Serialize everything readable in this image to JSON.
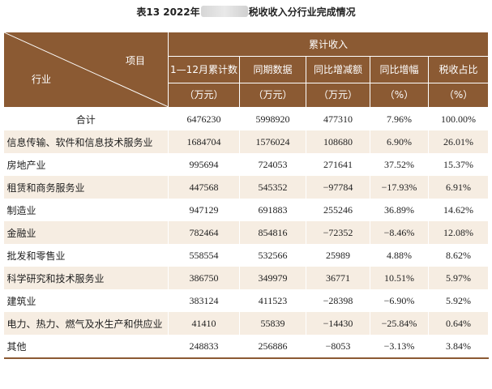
{
  "caption": {
    "prefix": "表13  2022年",
    "suffix": "税收收入分行业完成情况"
  },
  "header": {
    "item_label": "项目",
    "industry_label": "行业",
    "group_label": "累计收入",
    "columns": [
      {
        "line1": "1—12月累计数",
        "line2": "（万元）"
      },
      {
        "line1": "同期数据",
        "line2": "（万元）"
      },
      {
        "line1": "同比增减额",
        "line2": "（万元）"
      },
      {
        "line1": "同比增幅",
        "line2": "（%）"
      },
      {
        "line1": "税收占比",
        "line2": "（%）"
      }
    ]
  },
  "rows": [
    {
      "name": "合计",
      "cumulative": "6476230",
      "prior": "5998920",
      "change": "477310",
      "growth": "7.96%",
      "share": "100.00%"
    },
    {
      "name": "信息传输、软件和信息技术服务业",
      "cumulative": "1684704",
      "prior": "1576024",
      "change": "108680",
      "growth": "6.90%",
      "share": "26.01%"
    },
    {
      "name": "房地产业",
      "cumulative": "995694",
      "prior": "724053",
      "change": "271641",
      "growth": "37.52%",
      "share": "15.37%"
    },
    {
      "name": "租赁和商务服务业",
      "cumulative": "447568",
      "prior": "545352",
      "change": "−97784",
      "growth": "−17.93%",
      "share": "6.91%"
    },
    {
      "name": "制造业",
      "cumulative": "947129",
      "prior": "691883",
      "change": "255246",
      "growth": "36.89%",
      "share": "14.62%"
    },
    {
      "name": "金融业",
      "cumulative": "782464",
      "prior": "854816",
      "change": "−72352",
      "growth": "−8.46%",
      "share": "12.08%"
    },
    {
      "name": "批发和零售业",
      "cumulative": "558554",
      "prior": "532566",
      "change": "25989",
      "growth": "4.88%",
      "share": "8.62%"
    },
    {
      "name": "科学研究和技术服务业",
      "cumulative": "386750",
      "prior": "349979",
      "change": "36771",
      "growth": "10.51%",
      "share": "5.97%"
    },
    {
      "name": "建筑业",
      "cumulative": "383124",
      "prior": "411523",
      "change": "−28398",
      "growth": "−6.90%",
      "share": "5.92%"
    },
    {
      "name": "电力、热力、燃气及水生产和供应业",
      "cumulative": "41410",
      "prior": "55839",
      "change": "−14430",
      "growth": "−25.84%",
      "share": "0.64%"
    },
    {
      "name": "其他",
      "cumulative": "248833",
      "prior": "256886",
      "change": "−8053",
      "growth": "−3.13%",
      "share": "3.84%"
    }
  ]
}
